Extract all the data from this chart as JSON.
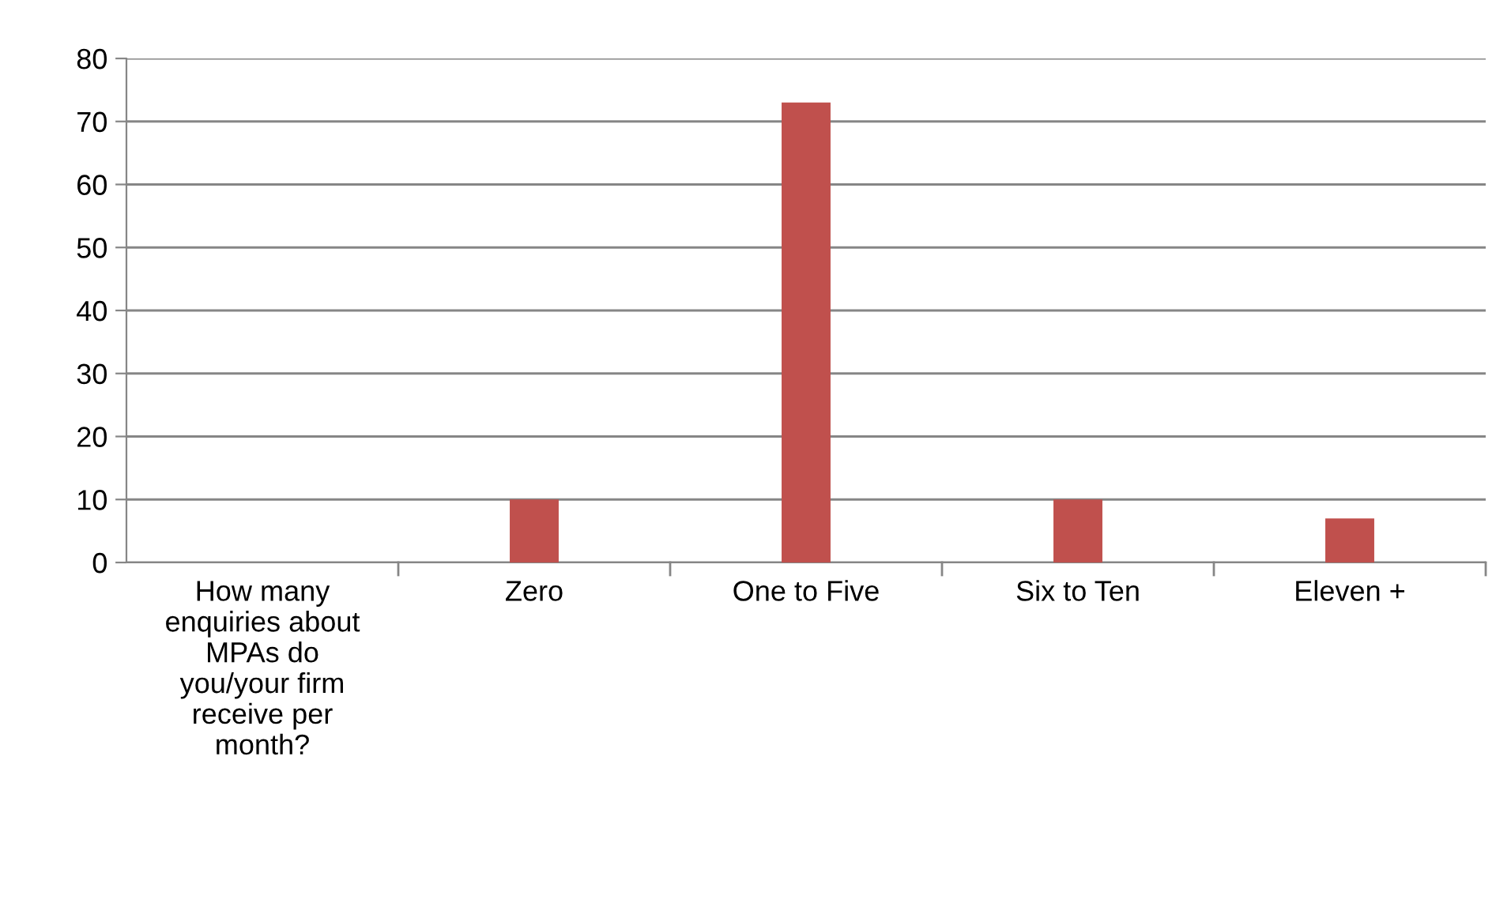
{
  "chart_data": {
    "type": "bar",
    "categories": [
      "How many\nenquiries about\nMPAs do\nyou/your firm\nreceive per\nmonth?",
      "Zero",
      "One to Five",
      "Six to Ten",
      "Eleven +"
    ],
    "values": [
      null,
      10,
      73,
      10,
      7
    ],
    "color": "#c0504d",
    "ylim": [
      0,
      80
    ],
    "yticks": [
      0,
      10,
      20,
      30,
      40,
      50,
      60,
      70,
      80
    ],
    "grid": "y",
    "legend": false
  }
}
